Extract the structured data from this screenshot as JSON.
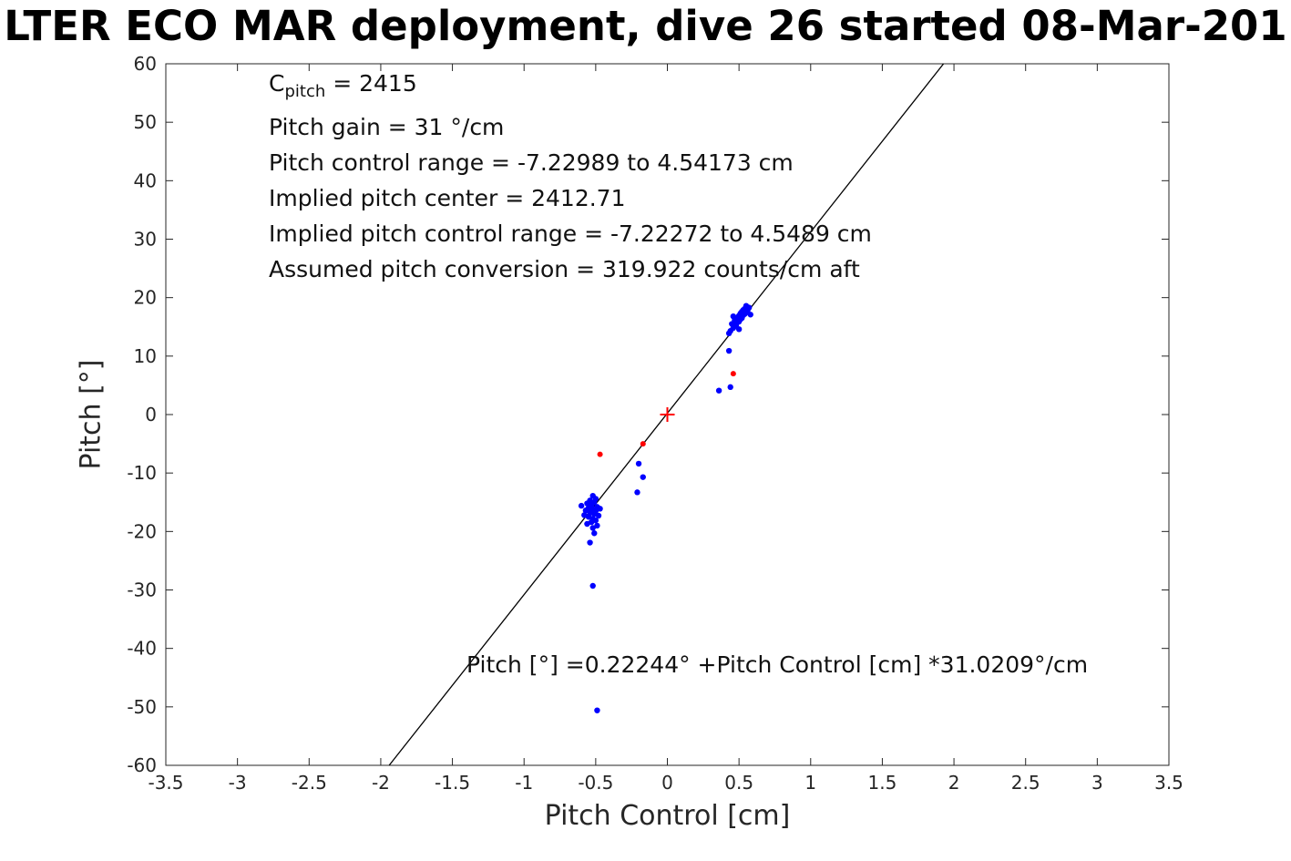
{
  "chart_data": {
    "type": "scatter",
    "title": "LTER ECO MAR deployment, dive 26 started 08-Mar-201",
    "xlabel": "Pitch Control [cm]",
    "ylabel": "Pitch [°]",
    "xlim": [
      -3.5,
      3.5
    ],
    "ylim": [
      -60,
      60
    ],
    "grid": false,
    "legend": "none",
    "axis_color": "#262626",
    "tick_label_color": "#262626",
    "xticks": [
      -3.5,
      -3,
      -2.5,
      -2,
      -1.5,
      -1,
      -0.5,
      0,
      0.5,
      1,
      1.5,
      2,
      2.5,
      3,
      3.5
    ],
    "xtick_labels": [
      "-3.5",
      "-3",
      "-2.5",
      "-2",
      "-1.5",
      "-1",
      "-0.5",
      "0",
      "0.5",
      "1",
      "1.5",
      "2",
      "2.5",
      "3",
      "3.5"
    ],
    "yticks": [
      -60,
      -50,
      -40,
      -30,
      -20,
      -10,
      0,
      10,
      20,
      30,
      40,
      50,
      60
    ],
    "ytick_labels": [
      "-60",
      "-50",
      "-40",
      "-30",
      "-20",
      "-10",
      "0",
      "10",
      "20",
      "30",
      "40",
      "50",
      "60"
    ],
    "annotation": {
      "cpitch": {
        "prefix": "C",
        "sub": "pitch",
        "suffix": " = 2415"
      },
      "lines": [
        "Pitch gain = 31 °/cm",
        "Pitch control range = -7.22989 to 4.54173 cm",
        "Implied pitch center = 2412.71",
        "Implied pitch control range = -7.22272 to 4.5489 cm",
        "Assumed pitch conversion = 319.922 counts/cm aft"
      ]
    },
    "fit_label": "Pitch [°] =0.22244° +Pitch Control [cm] *31.0209°/cm",
    "fit_line": {
      "intercept": 0.22244,
      "slope": 31.0209,
      "color": "#000000"
    },
    "series": [
      {
        "name": "pitch-data",
        "marker": "dot",
        "marker_size": 3.2,
        "color": "#0000ff",
        "points": [
          [
            0.44,
            14.3
          ],
          [
            0.46,
            14.8
          ],
          [
            0.47,
            15.1
          ],
          [
            0.45,
            15.5
          ],
          [
            0.48,
            15.3
          ],
          [
            0.49,
            15.8
          ],
          [
            0.47,
            16.1
          ],
          [
            0.5,
            15.9
          ],
          [
            0.51,
            16.3
          ],
          [
            0.49,
            16.6
          ],
          [
            0.52,
            16.5
          ],
          [
            0.5,
            16.9
          ],
          [
            0.53,
            17.0
          ],
          [
            0.51,
            17.3
          ],
          [
            0.54,
            17.2
          ],
          [
            0.52,
            17.6
          ],
          [
            0.55,
            17.5
          ],
          [
            0.53,
            17.9
          ],
          [
            0.56,
            17.8
          ],
          [
            0.54,
            18.1
          ],
          [
            0.57,
            18.3
          ],
          [
            0.55,
            18.6
          ],
          [
            0.5,
            14.6
          ],
          [
            0.58,
            17.1
          ],
          [
            0.46,
            16.8
          ],
          [
            0.43,
            13.9
          ],
          [
            0.43,
            10.9
          ],
          [
            0.44,
            4.7
          ],
          [
            0.36,
            4.1
          ],
          [
            -0.2,
            -8.4
          ],
          [
            -0.17,
            -10.7
          ],
          [
            -0.21,
            -13.3
          ],
          [
            -0.52,
            -13.9
          ],
          [
            -0.5,
            -14.4
          ],
          [
            -0.54,
            -14.7
          ],
          [
            -0.51,
            -15.0
          ],
          [
            -0.56,
            -15.2
          ],
          [
            -0.53,
            -15.5
          ],
          [
            -0.49,
            -15.8
          ],
          [
            -0.55,
            -16.0
          ],
          [
            -0.52,
            -16.2
          ],
          [
            -0.5,
            -16.5
          ],
          [
            -0.57,
            -16.4
          ],
          [
            -0.54,
            -16.8
          ],
          [
            -0.51,
            -17.0
          ],
          [
            -0.48,
            -17.3
          ],
          [
            -0.55,
            -17.5
          ],
          [
            -0.52,
            -17.8
          ],
          [
            -0.58,
            -17.2
          ],
          [
            -0.5,
            -18.1
          ],
          [
            -0.53,
            -18.4
          ],
          [
            -0.56,
            -18.7
          ],
          [
            -0.49,
            -19.0
          ],
          [
            -0.52,
            -19.4
          ],
          [
            -0.47,
            -16.1
          ],
          [
            -0.6,
            -15.6
          ],
          [
            -0.51,
            -20.3
          ],
          [
            -0.54,
            -21.9
          ],
          [
            -0.52,
            -29.3
          ],
          [
            -0.49,
            -50.6
          ]
        ]
      },
      {
        "name": "flagged-data",
        "marker": "dot",
        "marker_size": 3.0,
        "color": "#ff0000",
        "points": [
          [
            -0.47,
            -6.8
          ],
          [
            0.46,
            7.0
          ],
          [
            -0.17,
            -5.0
          ]
        ]
      },
      {
        "name": "origin-reference",
        "marker": "plus",
        "marker_size": 8,
        "color": "#ff0000",
        "points": [
          [
            0.0,
            0.0
          ]
        ]
      }
    ]
  }
}
